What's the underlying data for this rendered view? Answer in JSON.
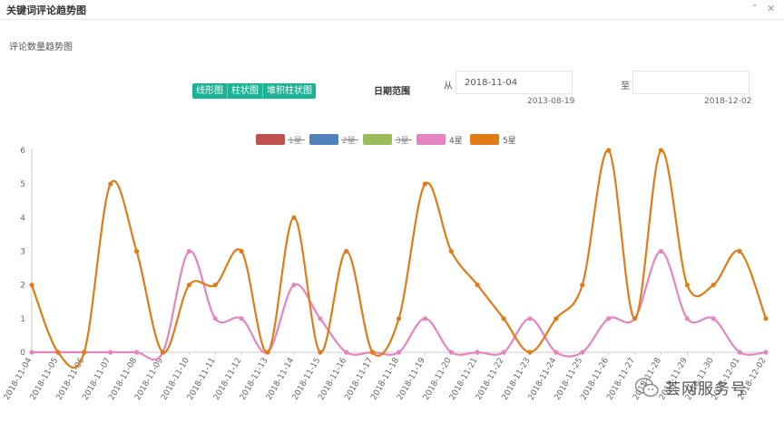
{
  "header": {
    "title": "关键词评论趋势图",
    "collapse_glyph": "˄",
    "close_glyph": "✕"
  },
  "panel": {
    "subtitle": "评论数量趋势图"
  },
  "chart_switch": {
    "line": "线形图",
    "bar": "柱状图",
    "stacked": "堆积柱状图"
  },
  "date_range": {
    "label": "日期范围",
    "from_label": "从",
    "from_value": "2018-11-04",
    "from_hint": "2013-08-19",
    "to_label": "至",
    "to_value": "",
    "to_hint": "2018-12-02"
  },
  "watermark": {
    "text": "荟网服务号"
  },
  "colors": {
    "accent": "#1ab394",
    "axis": "#cccccc"
  },
  "chart_data": {
    "type": "line",
    "smooth": true,
    "ylim": [
      0,
      6
    ],
    "yticks": [
      0,
      1,
      2,
      3,
      4,
      5,
      6
    ],
    "legend_position": "top-center",
    "categories": [
      "2018-11-04",
      "2018-11-05",
      "2018-11-06",
      "2018-11-07",
      "2018-11-08",
      "2018-11-09",
      "2018-11-10",
      "2018-11-11",
      "2018-11-12",
      "2018-11-13",
      "2018-11-14",
      "2018-11-15",
      "2018-11-16",
      "2018-11-17",
      "2018-11-18",
      "2018-11-19",
      "2018-11-20",
      "2018-11-21",
      "2018-11-22",
      "2018-11-23",
      "2018-11-24",
      "2018-11-25",
      "2018-11-26",
      "2018-11-27",
      "2018-11-28",
      "2018-11-29",
      "2018-11-30",
      "2018-12-01",
      "2018-12-02"
    ],
    "series": [
      {
        "name": "1星",
        "color": "#c0504d",
        "visible": false,
        "values": [
          0,
          0,
          0,
          0,
          0,
          0,
          0,
          0,
          0,
          0,
          0,
          0,
          0,
          0,
          0,
          0,
          0,
          0,
          0,
          0,
          0,
          0,
          0,
          0,
          0,
          0,
          0,
          0,
          0
        ]
      },
      {
        "name": "2星",
        "color": "#4f81bd",
        "visible": false,
        "values": [
          0,
          0,
          0,
          0,
          0,
          0,
          0,
          0,
          0,
          0,
          0,
          0,
          0,
          0,
          0,
          0,
          0,
          0,
          0,
          0,
          0,
          0,
          0,
          0,
          0,
          0,
          0,
          0,
          0
        ]
      },
      {
        "name": "3星",
        "color": "#9bbb59",
        "visible": false,
        "values": [
          0,
          0,
          0,
          0,
          0,
          0,
          0,
          0,
          0,
          0,
          0,
          0,
          0,
          0,
          0,
          0,
          0,
          0,
          0,
          0,
          0,
          0,
          0,
          0,
          0,
          0,
          0,
          0,
          0
        ]
      },
      {
        "name": "4星",
        "color": "#e585c0",
        "visible": true,
        "values": [
          0,
          0,
          0,
          0,
          0,
          0,
          3,
          1,
          1,
          0,
          2,
          1,
          0,
          0,
          0,
          1,
          0,
          0,
          0,
          1,
          0,
          0,
          1,
          1,
          3,
          1,
          1,
          0,
          0
        ]
      },
      {
        "name": "5星",
        "color": "#e07b16",
        "visible": true,
        "values": [
          2,
          0,
          0,
          5,
          3,
          0,
          2,
          2,
          3,
          0,
          4,
          0,
          3,
          0,
          1,
          5,
          3,
          2,
          1,
          0,
          1,
          2,
          6,
          1,
          6,
          2,
          2,
          3,
          1
        ]
      }
    ]
  }
}
